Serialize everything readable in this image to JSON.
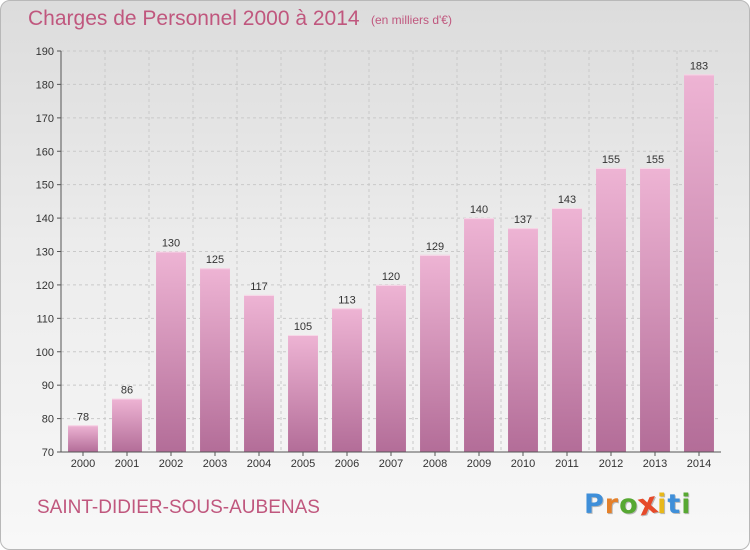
{
  "header": {
    "title": "Charges de Personnel 2000 à 2014",
    "subtitle": "(en milliers d'€)"
  },
  "footer": {
    "commune": "SAINT-DIDIER-SOUS-AUBENAS",
    "logo": {
      "letters": [
        "P",
        "r",
        "o",
        "x",
        "i",
        "t",
        "i"
      ],
      "colors": [
        "#3f8fd9",
        "#e4802a",
        "#57a832",
        "#e64a2a",
        "#e8b81a",
        "#3f8fd9",
        "#57a832"
      ]
    }
  },
  "colors": {
    "bar_light": "#eeb4d4",
    "bar_dark": "#b36d98",
    "text_accent": "#c0577e"
  },
  "chart_data": {
    "type": "bar",
    "categories": [
      "2000",
      "2001",
      "2002",
      "2003",
      "2004",
      "2005",
      "2006",
      "2007",
      "2008",
      "2009",
      "2010",
      "2011",
      "2012",
      "2013",
      "2014"
    ],
    "values": [
      78,
      86,
      130,
      125,
      117,
      105,
      113,
      120,
      129,
      140,
      137,
      143,
      155,
      155,
      183
    ],
    "ylim": [
      70,
      190
    ],
    "yticks": [
      70,
      80,
      90,
      100,
      110,
      120,
      130,
      140,
      150,
      160,
      170,
      180,
      190
    ],
    "grid": true,
    "data_labels": true
  }
}
